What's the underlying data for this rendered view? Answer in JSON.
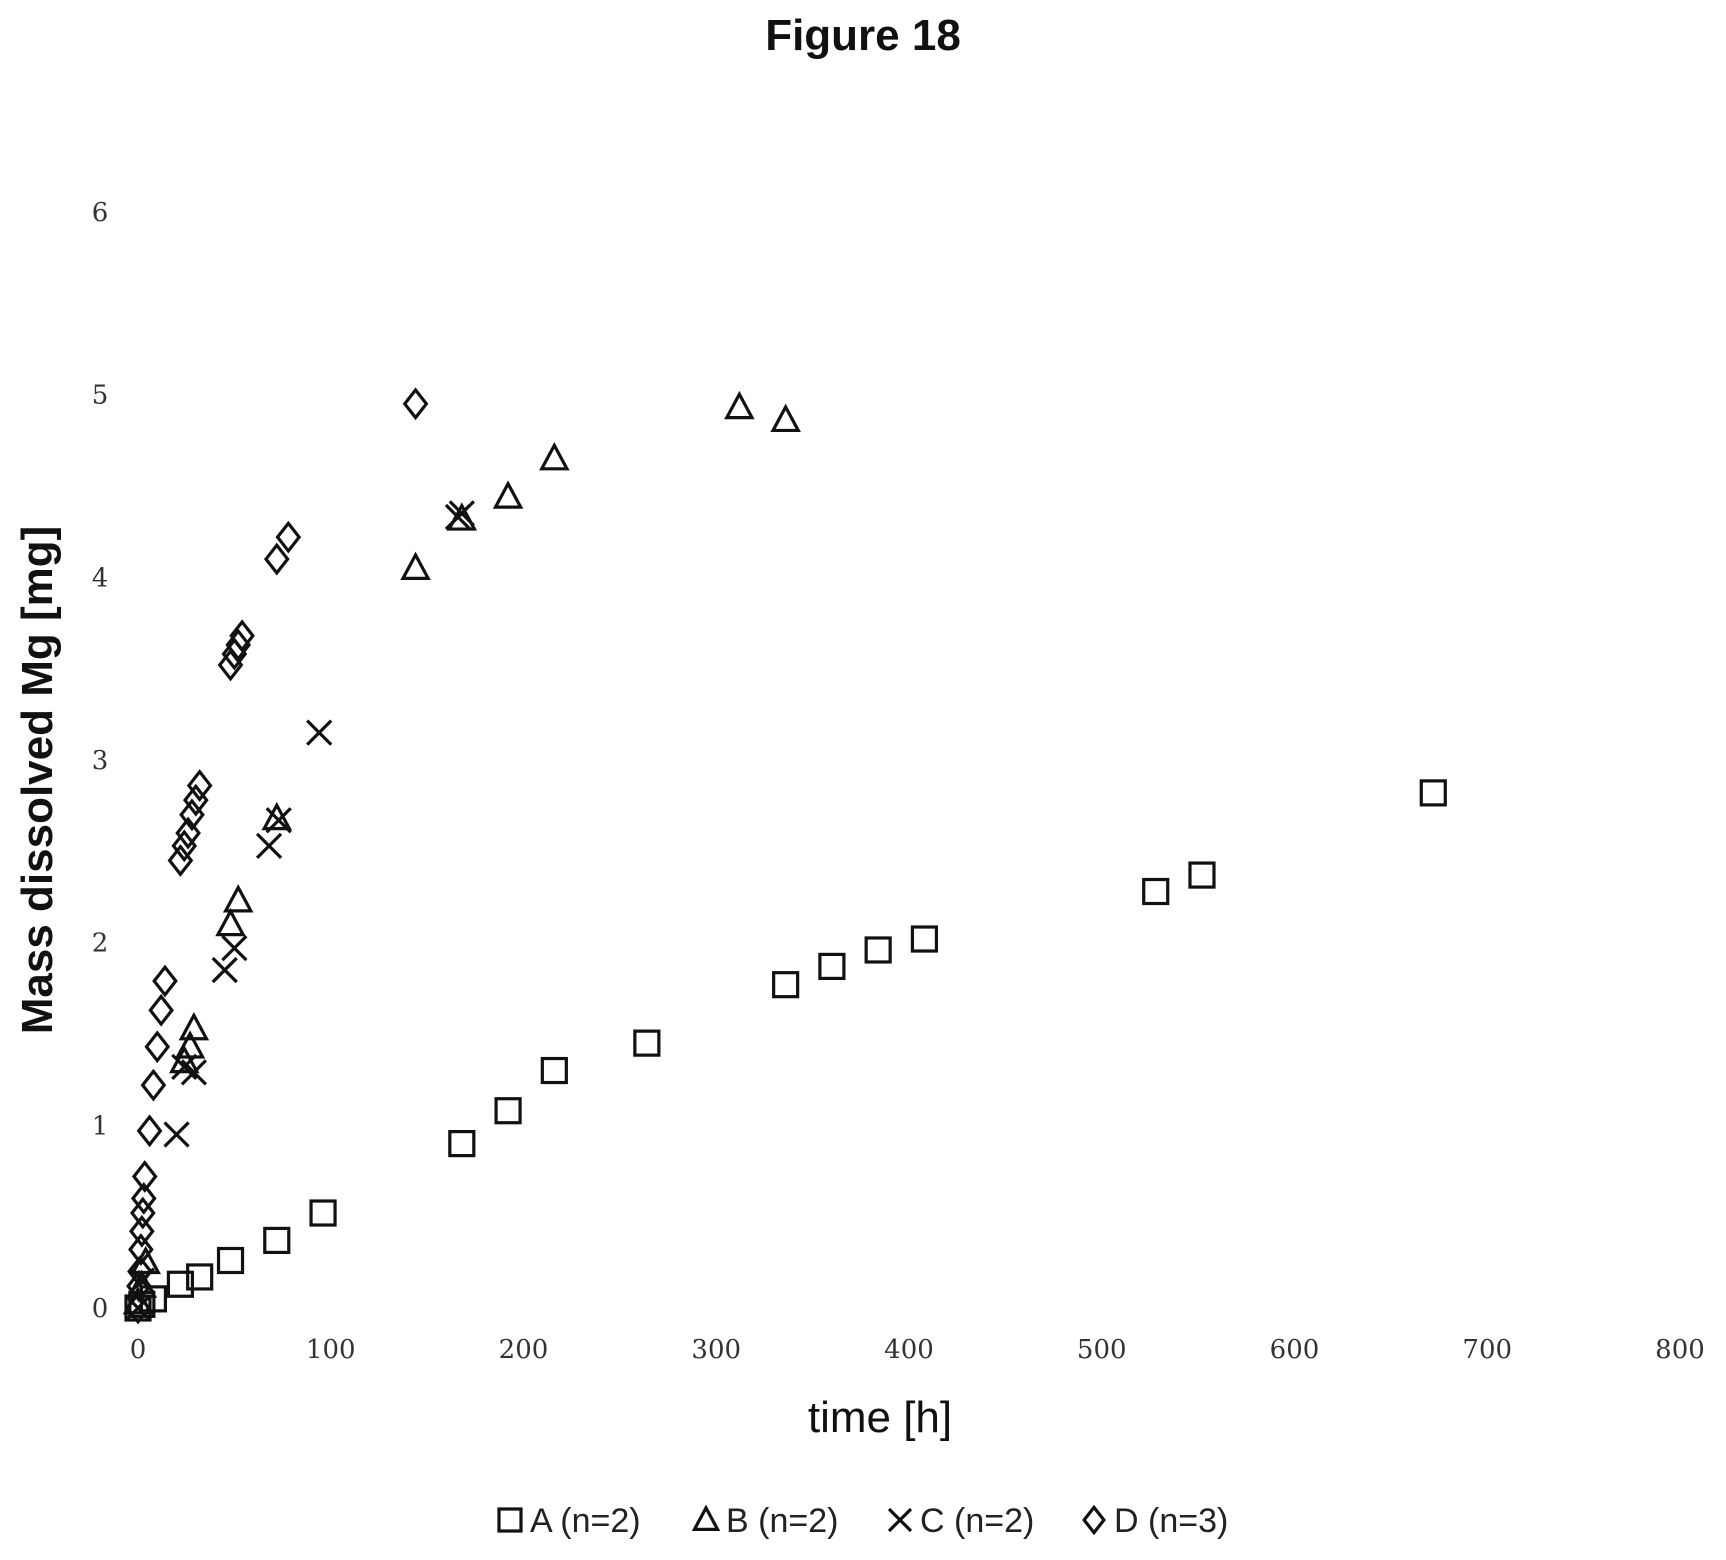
{
  "chart_data": {
    "type": "scatter",
    "title": "Figure 18",
    "xlabel": "time [h]",
    "ylabel": "Mass dissolved Mg [mg]",
    "xlim": [
      0,
      800
    ],
    "ylim": [
      0,
      6
    ],
    "x_ticks": [
      "0",
      "100",
      "200",
      "300",
      "400",
      "500",
      "600",
      "700",
      "800"
    ],
    "y_ticks": [
      "0",
      "1",
      "2",
      "3",
      "4",
      "5",
      "6"
    ],
    "grid": false,
    "legend_position": "bottom",
    "series": [
      {
        "name": "A (n=2)",
        "marker": "square",
        "points": [
          [
            0,
            0
          ],
          [
            2,
            0.02
          ],
          [
            8,
            0.05
          ],
          [
            22,
            0.13
          ],
          [
            32,
            0.17
          ],
          [
            48,
            0.26
          ],
          [
            72,
            0.37
          ],
          [
            96,
            0.52
          ],
          [
            168,
            0.9
          ],
          [
            192,
            1.08
          ],
          [
            216,
            1.3
          ],
          [
            264,
            1.45
          ],
          [
            336,
            1.77
          ],
          [
            360,
            1.87
          ],
          [
            384,
            1.96
          ],
          [
            408,
            2.02
          ],
          [
            528,
            2.28
          ],
          [
            552,
            2.37
          ],
          [
            672,
            2.82
          ]
        ]
      },
      {
        "name": "B (n=2)",
        "marker": "triangle",
        "points": [
          [
            0,
            0.03
          ],
          [
            2,
            0.12
          ],
          [
            4,
            0.25
          ],
          [
            24,
            1.35
          ],
          [
            27,
            1.43
          ],
          [
            29,
            1.53
          ],
          [
            48,
            2.1
          ],
          [
            52,
            2.23
          ],
          [
            72,
            2.68
          ],
          [
            144,
            4.05
          ],
          [
            168,
            4.32
          ],
          [
            192,
            4.44
          ],
          [
            216,
            4.65
          ],
          [
            312,
            4.93
          ],
          [
            336,
            4.86
          ]
        ]
      },
      {
        "name": "C (n=2)",
        "marker": "x",
        "points": [
          [
            0,
            0.0
          ],
          [
            2,
            0.15
          ],
          [
            20,
            0.95
          ],
          [
            24,
            1.32
          ],
          [
            29,
            1.29
          ],
          [
            45,
            1.85
          ],
          [
            50,
            1.97
          ],
          [
            68,
            2.53
          ],
          [
            73,
            2.67
          ],
          [
            94,
            3.15
          ],
          [
            166,
            4.33
          ],
          [
            168,
            4.35
          ]
        ]
      },
      {
        "name": "D (n=3)",
        "marker": "diamond",
        "points": [
          [
            0,
            0.0
          ],
          [
            0.5,
            0.12
          ],
          [
            1,
            0.2
          ],
          [
            1.5,
            0.32
          ],
          [
            2,
            0.42
          ],
          [
            2.5,
            0.52
          ],
          [
            3,
            0.6
          ],
          [
            3.5,
            0.72
          ],
          [
            6,
            0.97
          ],
          [
            8,
            1.22
          ],
          [
            10,
            1.43
          ],
          [
            12,
            1.63
          ],
          [
            14,
            1.79
          ],
          [
            22,
            2.45
          ],
          [
            24,
            2.53
          ],
          [
            26,
            2.6
          ],
          [
            28,
            2.7
          ],
          [
            30,
            2.78
          ],
          [
            32,
            2.86
          ],
          [
            48,
            3.52
          ],
          [
            50,
            3.58
          ],
          [
            52,
            3.63
          ],
          [
            54,
            3.68
          ],
          [
            72,
            4.1
          ],
          [
            78,
            4.22
          ],
          [
            144,
            4.95
          ]
        ]
      }
    ]
  }
}
